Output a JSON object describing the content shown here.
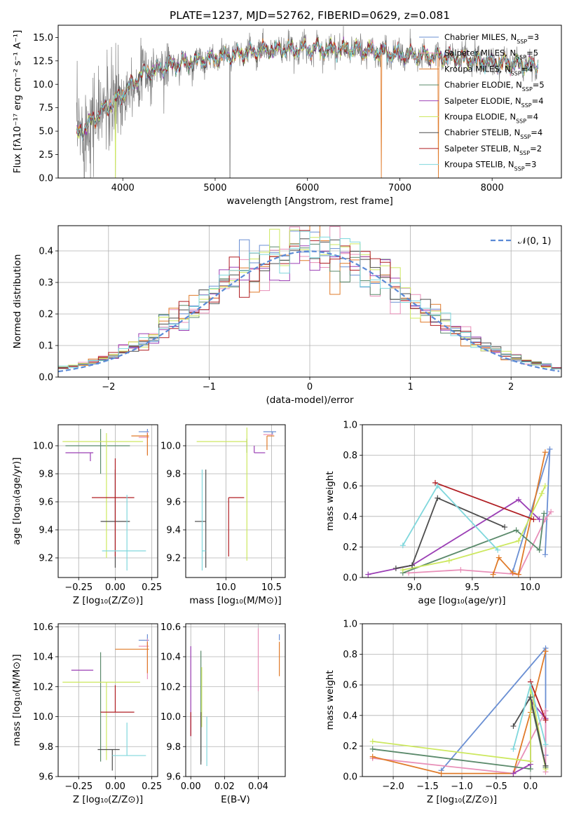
{
  "figure_title": "PLATE=1237, MJD=52762, FIBERID=0629, z=0.081",
  "chart_data": [
    {
      "id": "spectrum",
      "type": "line",
      "xlabel": "wavelength [Angstrom, rest frame]",
      "ylabel": "Flux [fλ10⁻¹⁷ erg cm⁻² s⁻¹ A⁻¹]",
      "xlim": [
        3300,
        8750
      ],
      "ylim": [
        0,
        16.3
      ],
      "xticks": [
        4000,
        5000,
        6000,
        7000,
        8000
      ],
      "yticks": [
        0.0,
        2.5,
        5.0,
        7.5,
        10.0,
        12.5,
        15.0
      ],
      "grid": false,
      "legend_position": "right",
      "observed": {
        "color": "#808080",
        "x_range": [
          3500,
          8500
        ],
        "continuum": [
          [
            3500,
            4.5
          ],
          [
            3700,
            6.5
          ],
          [
            3950,
            8.5
          ],
          [
            4200,
            11.0
          ],
          [
            4500,
            12.0
          ],
          [
            5000,
            12.8
          ],
          [
            5500,
            13.6
          ],
          [
            6000,
            13.8
          ],
          [
            6500,
            13.7
          ],
          [
            7000,
            13.2
          ],
          [
            7500,
            12.9
          ],
          [
            8000,
            12.3
          ],
          [
            8500,
            12.0
          ]
        ]
      },
      "legend": [
        {
          "name": "Chabrier MILES, N",
          "sub": "SSP",
          "suffix": "=3",
          "color": "#6a8fd3"
        },
        {
          "name": "Salpeter MILES, N",
          "sub": "SSP",
          "suffix": "=5",
          "color": "#e88fb8"
        },
        {
          "name": "Kroupa MILES, N",
          "sub": "SSP",
          "suffix": "=4",
          "color": "#e07b2a"
        },
        {
          "name": "Chabrier ELODIE, N",
          "sub": "SSP",
          "suffix": "=5",
          "color": "#5b8a6b"
        },
        {
          "name": "Salpeter ELODIE, N",
          "sub": "SSP",
          "suffix": "=4",
          "color": "#9b3fb5"
        },
        {
          "name": "Kroupa ELODIE, N",
          "sub": "SSP",
          "suffix": "=4",
          "color": "#cde860"
        },
        {
          "name": "Chabrier STELIB, N",
          "sub": "SSP",
          "suffix": "=4",
          "color": "#4d4d4d"
        },
        {
          "name": "Salpeter STELIB, N",
          "sub": "SSP",
          "suffix": "=2",
          "color": "#b01e23"
        },
        {
          "name": "Kroupa STELIB, N",
          "sub": "SSP",
          "suffix": "=3",
          "color": "#7fd7dc"
        }
      ]
    },
    {
      "id": "residuals",
      "type": "line",
      "xlabel": "(data-model)/error",
      "ylabel": "Normed distribution",
      "xlim": [
        -2.5,
        2.5
      ],
      "ylim": [
        0,
        0.48
      ],
      "xticks": [
        -2,
        -1,
        0,
        1,
        2
      ],
      "yticks": [
        0.0,
        0.1,
        0.2,
        0.3,
        0.4
      ],
      "grid": true,
      "legend_position": "top-right",
      "legend": [
        {
          "name": "𝒩(0, 1)",
          "color": "#5b8ad6"
        }
      ],
      "bin_width": 0.1
    },
    {
      "id": "age_vs_Z",
      "type": "scatter",
      "xlabel": "Z [log₁₀(Z/Z⊙)]",
      "ylabel": "age  [log₁₀(age/yr)]",
      "xlim": [
        -0.39,
        0.29
      ],
      "ylim": [
        9.06,
        10.15
      ],
      "xticks": [
        -0.25,
        0.0,
        0.25
      ],
      "yticks": [
        9.2,
        9.4,
        9.6,
        9.8,
        10.0
      ],
      "grid": true,
      "points": [
        {
          "color": "#6a8fd3",
          "x": 0.22,
          "xerr": [
            0.06,
            0.01
          ],
          "y": 10.1,
          "yerr": [
            0.02,
            0.02
          ]
        },
        {
          "color": "#e88fb8",
          "x": 0.22,
          "xerr": [
            0.06,
            0.01
          ],
          "y": 10.06,
          "yerr": [
            0.12,
            0.04
          ]
        },
        {
          "color": "#e07b2a",
          "x": 0.22,
          "xerr": [
            0.11,
            0.01
          ],
          "y": 10.07,
          "yerr": [
            0.14,
            0.02
          ]
        },
        {
          "color": "#5b8a6b",
          "x": -0.1,
          "xerr": [
            0.24,
            0.2
          ],
          "y": 10.0,
          "yerr": [
            0.2,
            0.12
          ]
        },
        {
          "color": "#9b3fb5",
          "x": -0.17,
          "xerr": [
            0.17,
            0.02
          ],
          "y": 9.95,
          "yerr": [
            0.06,
            0.0
          ]
        },
        {
          "color": "#cde860",
          "x": -0.06,
          "xerr": [
            0.3,
            0.25
          ],
          "y": 10.03,
          "yerr": [
            0.83,
            0.06
          ]
        },
        {
          "color": "#4d4d4d",
          "x": 0.0,
          "xerr": [
            0.1,
            0.1
          ],
          "y": 9.46,
          "yerr": [
            0.33,
            0.37
          ]
        },
        {
          "color": "#b01e23",
          "x": 0.0,
          "xerr": [
            0.16,
            0.13
          ],
          "y": 9.63,
          "yerr": [
            0.42,
            0.28
          ]
        },
        {
          "color": "#7fd7dc",
          "x": 0.08,
          "xerr": [
            0.17,
            0.13
          ],
          "y": 9.25,
          "yerr": [
            0.14,
            0.4
          ]
        }
      ]
    },
    {
      "id": "age_vs_mass",
      "type": "scatter",
      "xlabel": "mass [log₁₀(M/M⊙)]",
      "ylabel": "",
      "xlim": [
        9.56,
        10.65
      ],
      "ylim": [
        9.06,
        10.15
      ],
      "xticks": [
        10.0,
        10.5
      ],
      "yticks": [
        9.2,
        9.4,
        9.6,
        9.8,
        10.0
      ],
      "grid": true,
      "points": [
        {
          "color": "#6a8fd3",
          "x": 10.51,
          "xerr": [
            0.1,
            0.04
          ],
          "y": 10.1,
          "yerr": [
            0.02,
            0.0
          ]
        },
        {
          "color": "#e88fb8",
          "x": 10.47,
          "xerr": [
            0.06,
            0.05
          ],
          "y": 10.08,
          "yerr": [
            0.0,
            0.0
          ]
        },
        {
          "color": "#e07b2a",
          "x": 10.45,
          "xerr": [
            0.0,
            0.08
          ],
          "y": 10.07,
          "yerr": [
            0.1,
            0.0
          ]
        },
        {
          "color": "#5b8a6b",
          "x": 10.23,
          "xerr": [
            0.0,
            0.0
          ],
          "y": 10.0,
          "yerr": [
            0.05,
            0.05
          ]
        },
        {
          "color": "#9b3fb5",
          "x": 10.31,
          "xerr": [
            0.0,
            0.12
          ],
          "y": 9.95,
          "yerr": [
            0.0,
            0.05
          ]
        },
        {
          "color": "#cde860",
          "x": 10.23,
          "xerr": [
            0.55,
            0.0
          ],
          "y": 10.03,
          "yerr": [
            0.85,
            0.1
          ]
        },
        {
          "color": "#4d4d4d",
          "x": 9.78,
          "xerr": [
            0.12,
            0.0
          ],
          "y": 9.46,
          "yerr": [
            0.33,
            0.37
          ]
        },
        {
          "color": "#b01e23",
          "x": 10.03,
          "xerr": [
            0.0,
            0.17
          ],
          "y": 9.63,
          "yerr": [
            0.42,
            0.0
          ]
        },
        {
          "color": "#7fd7dc",
          "x": 9.74,
          "xerr": [
            0.0,
            0.04
          ],
          "y": 9.25,
          "yerr": [
            0.14,
            0.58
          ]
        }
      ]
    },
    {
      "id": "weight_vs_age",
      "type": "line",
      "xlabel": "age  [log₁₀(age/yr)]",
      "ylabel": "mass weight",
      "xlim": [
        8.55,
        10.27
      ],
      "ylim": [
        0,
        1.0
      ],
      "xticks": [
        9.0,
        9.5,
        10.0
      ],
      "yticks": [
        0.0,
        0.2,
        0.4,
        0.6,
        0.8,
        1.0
      ],
      "grid": true,
      "series": [
        {
          "color": "#6a8fd3",
          "points": [
            [
              9.85,
              0.04
            ],
            [
              10.17,
              0.84
            ],
            [
              10.13,
              0.15
            ]
          ]
        },
        {
          "color": "#e88fb8",
          "points": [
            [
              8.95,
              0.03
            ],
            [
              9.4,
              0.05
            ],
            [
              9.9,
              0.02
            ],
            [
              10.13,
              0.38
            ],
            [
              10.18,
              0.43
            ]
          ]
        },
        {
          "color": "#e07b2a",
          "points": [
            [
              9.68,
              0.02
            ],
            [
              9.73,
              0.13
            ],
            [
              9.85,
              0.03
            ],
            [
              9.9,
              0.02
            ],
            [
              10.13,
              0.82
            ]
          ]
        },
        {
          "color": "#5b8a6b",
          "points": [
            [
              8.9,
              0.03
            ],
            [
              9.88,
              0.31
            ],
            [
              10.08,
              0.18
            ],
            [
              10.12,
              0.42
            ]
          ]
        },
        {
          "color": "#9b3fb5",
          "points": [
            [
              8.6,
              0.02
            ],
            [
              8.98,
              0.08
            ],
            [
              9.9,
              0.51
            ],
            [
              10.08,
              0.38
            ]
          ]
        },
        {
          "color": "#cde860",
          "points": [
            [
              8.9,
              0.05
            ],
            [
              9.3,
              0.11
            ],
            [
              9.9,
              0.24
            ],
            [
              10.1,
              0.55
            ],
            [
              10.13,
              0.6
            ]
          ]
        },
        {
          "color": "#4d4d4d",
          "points": [
            [
              8.84,
              0.06
            ],
            [
              8.98,
              0.08
            ],
            [
              9.2,
              0.52
            ],
            [
              9.78,
              0.33
            ]
          ]
        },
        {
          "color": "#b01e23",
          "points": [
            [
              9.18,
              0.62
            ],
            [
              10.03,
              0.38
            ]
          ]
        },
        {
          "color": "#7fd7dc",
          "points": [
            [
              8.9,
              0.21
            ],
            [
              9.2,
              0.6
            ],
            [
              9.72,
              0.18
            ]
          ]
        }
      ]
    },
    {
      "id": "mass_vs_Z",
      "type": "scatter",
      "xlabel": "Z [log₁₀(Z/Z⊙)]",
      "ylabel": "mass [log₁₀(M/M⊙)]",
      "xlim": [
        -0.39,
        0.29
      ],
      "ylim": [
        9.6,
        10.62
      ],
      "xticks": [
        -0.25,
        0.0,
        0.25
      ],
      "yticks": [
        9.6,
        9.8,
        10.0,
        10.2,
        10.4,
        10.6
      ],
      "grid": true,
      "points": [
        {
          "color": "#6a8fd3",
          "x": 0.22,
          "xerr": [
            0.06,
            0.01
          ],
          "y": 10.51,
          "yerr": [
            0.04,
            0.04
          ]
        },
        {
          "color": "#e88fb8",
          "x": 0.22,
          "xerr": [
            0.06,
            0.01
          ],
          "y": 10.47,
          "yerr": [
            0.22,
            0.05
          ]
        },
        {
          "color": "#e07b2a",
          "x": 0.22,
          "xerr": [
            0.22,
            0.01
          ],
          "y": 10.45,
          "yerr": [
            0.16,
            0.05
          ]
        },
        {
          "color": "#5b8a6b",
          "x": -0.1,
          "xerr": [
            0.0,
            0.0
          ],
          "y": 10.23,
          "yerr": [
            0.53,
            0.2
          ]
        },
        {
          "color": "#9b3fb5",
          "x": -0.2,
          "xerr": [
            0.1,
            0.05
          ],
          "y": 10.31,
          "yerr": [
            0.0,
            0.0
          ]
        },
        {
          "color": "#cde860",
          "x": -0.06,
          "xerr": [
            0.3,
            0.23
          ],
          "y": 10.23,
          "yerr": [
            0.52,
            0.0
          ]
        },
        {
          "color": "#4d4d4d",
          "x": -0.02,
          "xerr": [
            0.1,
            0.05
          ],
          "y": 9.78,
          "yerr": [
            0.14,
            0.0
          ]
        },
        {
          "color": "#b01e23",
          "x": 0.0,
          "xerr": [
            0.1,
            0.13
          ],
          "y": 10.03,
          "yerr": [
            0.0,
            0.18
          ]
        },
        {
          "color": "#7fd7dc",
          "x": 0.08,
          "xerr": [
            0.1,
            0.13
          ],
          "y": 9.74,
          "yerr": [
            0.0,
            0.22
          ]
        }
      ]
    },
    {
      "id": "mass_vs_ebv",
      "type": "scatter",
      "xlabel": "E(B-V)",
      "ylabel": "",
      "xlim": [
        -0.003,
        0.056
      ],
      "ylim": [
        9.6,
        10.62
      ],
      "xticks": [
        0.0,
        0.02,
        0.04
      ],
      "yticks": [
        9.6,
        9.8,
        10.0,
        10.2,
        10.4,
        10.6
      ],
      "grid": true,
      "points": [
        {
          "color": "#6a8fd3",
          "x": 0.0525,
          "y": 10.51,
          "yerr": [
            0.0,
            0.04
          ]
        },
        {
          "color": "#e88fb8",
          "x": 0.04,
          "y": 10.47,
          "yerr": [
            0.3,
            0.12
          ]
        },
        {
          "color": "#e07b2a",
          "x": 0.0525,
          "y": 10.45,
          "yerr": [
            0.18,
            0.05
          ]
        },
        {
          "color": "#5b8a6b",
          "x": 0.006,
          "y": 10.23,
          "yerr": [
            0.53,
            0.21
          ]
        },
        {
          "color": "#9b3fb5",
          "x": 0.0,
          "y": 10.31,
          "yerr": [
            0.44,
            0.16
          ]
        },
        {
          "color": "#cde860",
          "x": 0.0065,
          "y": 10.23,
          "yerr": [
            0.3,
            0.1
          ]
        },
        {
          "color": "#4d4d4d",
          "x": 0.006,
          "y": 9.78,
          "yerr": [
            0.1,
            0.25
          ]
        },
        {
          "color": "#b01e23",
          "x": 0.0,
          "y": 10.03,
          "yerr": [
            0.16,
            0.0
          ]
        },
        {
          "color": "#7fd7dc",
          "x": 0.0095,
          "y": 9.74,
          "yerr": [
            0.07,
            0.26
          ]
        }
      ]
    },
    {
      "id": "weight_vs_Z",
      "type": "line",
      "xlabel": "Z [log₁₀(Z/Z⊙)]",
      "ylabel": "mass weight",
      "xlim": [
        -2.45,
        0.45
      ],
      "ylim": [
        0,
        1.0
      ],
      "xticks": [
        -2.0,
        -1.5,
        -1.0,
        -0.5,
        0.0
      ],
      "yticks": [
        0.0,
        0.2,
        0.4,
        0.6,
        0.8,
        1.0
      ],
      "grid": true,
      "series": [
        {
          "color": "#6a8fd3",
          "points": [
            [
              -1.3,
              0.04
            ],
            [
              0.22,
              0.84
            ],
            [
              0.22,
              0.14
            ]
          ]
        },
        {
          "color": "#e88fb8",
          "points": [
            [
              -2.3,
              0.12
            ],
            [
              -0.25,
              0.02
            ],
            [
              0.22,
              0.43
            ],
            [
              0.22,
              0.38
            ],
            [
              0.22,
              0.03
            ]
          ]
        },
        {
          "color": "#e07b2a",
          "points": [
            [
              -2.3,
              0.13
            ],
            [
              -1.3,
              0.02
            ],
            [
              -0.25,
              0.02
            ],
            [
              0.0,
              0.42
            ],
            [
              0.22,
              0.82
            ]
          ]
        },
        {
          "color": "#5b8a6b",
          "points": [
            [
              -2.3,
              0.18
            ],
            [
              0.0,
              0.05
            ],
            [
              0.0,
              0.5
            ],
            [
              0.22,
              0.06
            ]
          ]
        },
        {
          "color": "#9b3fb5",
          "points": [
            [
              -0.25,
              0.02
            ],
            [
              0.0,
              0.08
            ],
            [
              0.0,
              0.5
            ],
            [
              0.22,
              0.38
            ]
          ]
        },
        {
          "color": "#cde860",
          "points": [
            [
              -2.3,
              0.23
            ],
            [
              0.0,
              0.1
            ],
            [
              0.0,
              0.6
            ],
            [
              0.22,
              0.05
            ]
          ]
        },
        {
          "color": "#4d4d4d",
          "points": [
            [
              -0.25,
              0.33
            ],
            [
              0.0,
              0.52
            ],
            [
              0.22,
              0.07
            ]
          ]
        },
        {
          "color": "#b01e23",
          "points": [
            [
              0.0,
              0.62
            ],
            [
              0.22,
              0.37
            ]
          ]
        },
        {
          "color": "#7fd7dc",
          "points": [
            [
              -0.25,
              0.18
            ],
            [
              0.0,
              0.6
            ],
            [
              0.22,
              0.21
            ]
          ]
        }
      ]
    }
  ]
}
